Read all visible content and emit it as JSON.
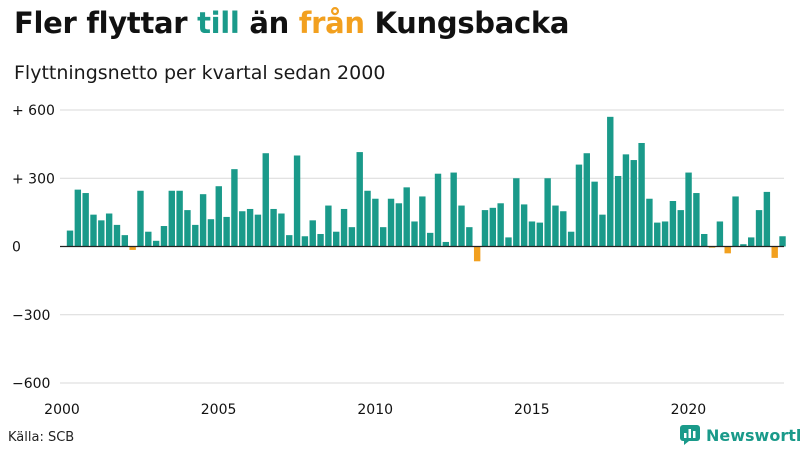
{
  "header": {
    "title_parts": [
      {
        "text": "Fler flyttar ",
        "role": "plain"
      },
      {
        "text": "till",
        "role": "positive"
      },
      {
        "text": " än ",
        "role": "plain"
      },
      {
        "text": "från",
        "role": "negative"
      },
      {
        "text": " Kungsbacka",
        "role": "plain"
      }
    ],
    "subtitle": "Flyttningsnetto per kvartal sedan 2000"
  },
  "footer": {
    "source": "Källa: SCB",
    "brand": "Newsworthy"
  },
  "colors": {
    "positive": "#1a9a8a",
    "negative": "#f2a01f",
    "text": "#111111",
    "grid": "#d9d9d9",
    "brand": "#1a9a8a"
  },
  "chart_data": {
    "type": "bar",
    "x_tick_labels": [
      "2000",
      "2005",
      "2010",
      "2015",
      "2020"
    ],
    "y_tick_labels": [
      "+ 600",
      "+ 300",
      "0",
      "−300",
      "−600"
    ],
    "y_ticks": [
      600,
      300,
      0,
      -300,
      -600
    ],
    "ylim": [
      -600,
      600
    ],
    "grid": true,
    "start": {
      "year": 2000,
      "quarter": 1
    },
    "values": [
      70,
      250,
      235,
      140,
      115,
      145,
      95,
      50,
      -15,
      245,
      65,
      25,
      90,
      245,
      245,
      160,
      95,
      230,
      120,
      265,
      130,
      340,
      155,
      165,
      140,
      410,
      165,
      145,
      50,
      400,
      45,
      115,
      55,
      180,
      65,
      165,
      85,
      415,
      245,
      210,
      85,
      210,
      190,
      260,
      110,
      220,
      60,
      320,
      20,
      325,
      180,
      85,
      -65,
      160,
      170,
      190,
      40,
      300,
      185,
      110,
      105,
      300,
      180,
      155,
      65,
      360,
      410,
      285,
      140,
      570,
      310,
      405,
      380,
      455,
      210,
      105,
      110,
      200,
      160,
      325,
      235,
      55,
      -5,
      110,
      -30,
      220,
      10,
      40,
      160,
      240,
      -50,
      45
    ]
  }
}
